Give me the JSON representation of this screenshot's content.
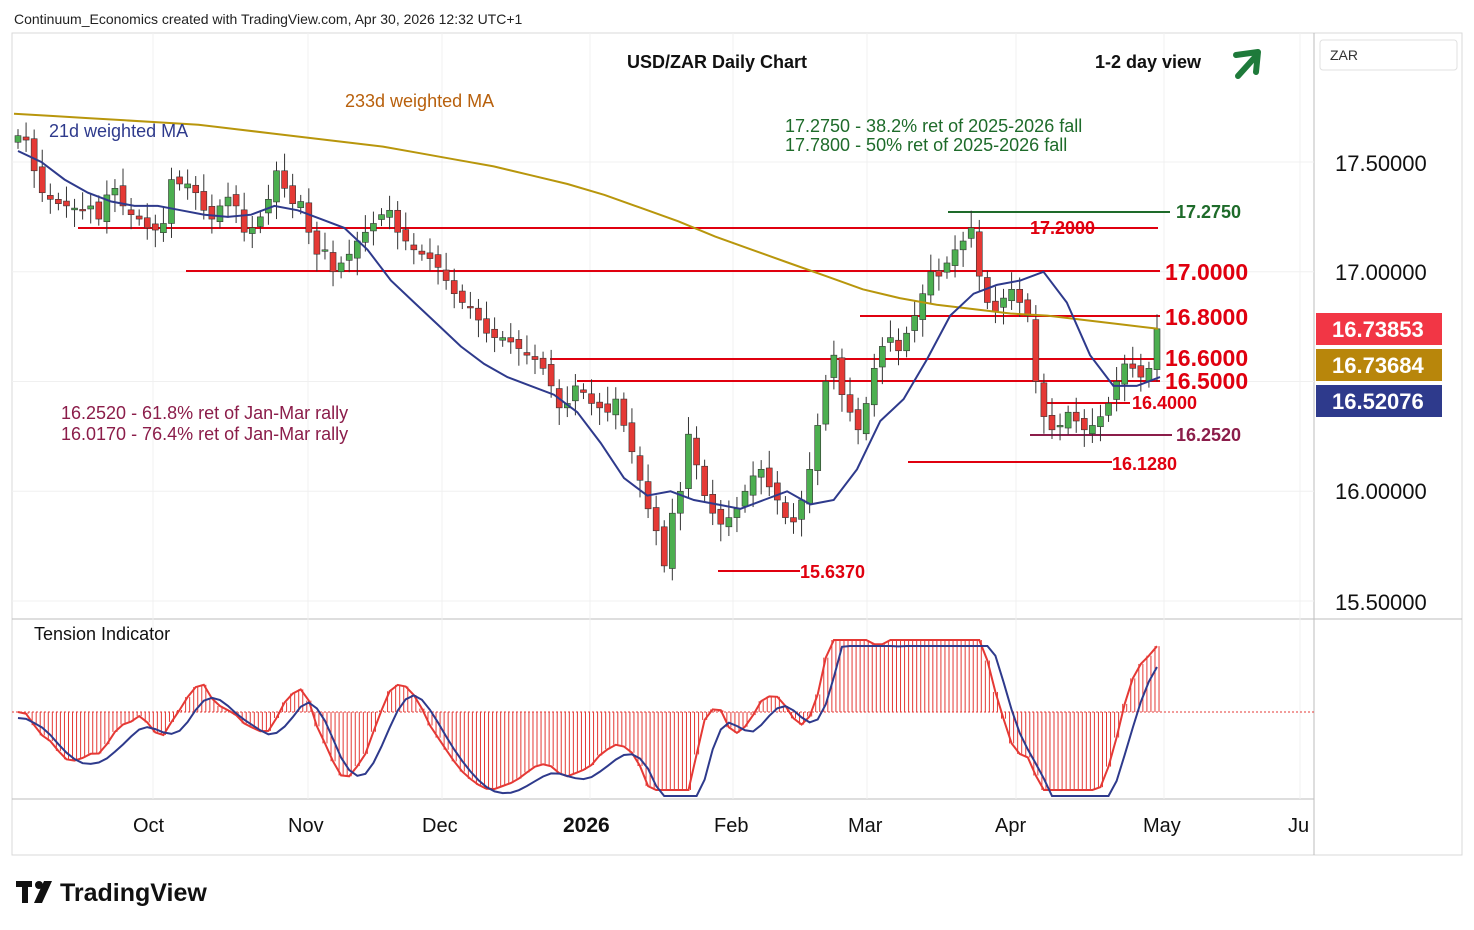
{
  "header": {
    "credit": "Continuum_Economics created with TradingView.com, Apr 30, 2026 12:32 UTC+1",
    "title": "USD/ZAR Daily Chart",
    "view": "1-2 day view",
    "view_arrow": "arrow-up-right-icon"
  },
  "currency_label": "ZAR",
  "annotations": {
    "ma233": "233d weighted MA",
    "ma21": "21d weighted MA",
    "fib_up_1": "17.2750 - 38.2% ret of 2025-2026 fall",
    "fib_up_2": "17.7800 - 50% ret of 2025-2026 fall",
    "fib_dn_1": "16.2520 - 61.8% ret of Jan-Mar rally",
    "fib_dn_2": "16.0170 - 76.4% ret of Jan-Mar rally"
  },
  "price_badges": [
    {
      "text": "16.73853",
      "color": "#f23645"
    },
    {
      "text": "16.73684",
      "color": "#b8860b"
    },
    {
      "text": "16.52076",
      "color": "#2e3a8c"
    }
  ],
  "indicator": {
    "title": "Tension Indicator"
  },
  "branding": {
    "logo_text": "TradingView",
    "logo_icon": "tradingview-logo-icon"
  },
  "colors": {
    "up": "#4caf50",
    "down": "#e53935",
    "ma233": "#b8960c",
    "ma21": "#2e3a8c",
    "level": "#e0000f",
    "fib_green": "#1e6b2a",
    "fib_dn": "#8b1d4a",
    "arrow": "#1e7a3a"
  },
  "chart_data": {
    "type": "candlestick",
    "title": "USD/ZAR Daily Chart",
    "ylim": [
      15.5,
      17.5
    ],
    "y_ticks": [
      "17.50000",
      "17.00000",
      "16.00000",
      "15.50000"
    ],
    "x_ticks": [
      "Oct",
      "Nov",
      "Dec",
      "2026",
      "Feb",
      "Mar",
      "Apr",
      "May",
      "Ju"
    ],
    "levels": [
      {
        "value": 17.275,
        "label": "17.2750"
      },
      {
        "value": 17.2,
        "label": "17.2000"
      },
      {
        "value": 17.0,
        "label": "17.0000"
      },
      {
        "value": 16.8,
        "label": "16.8000"
      },
      {
        "value": 16.6,
        "label": "16.6000"
      },
      {
        "value": 16.5,
        "label": "16.5000"
      },
      {
        "value": 16.4,
        "label": "16.4000"
      },
      {
        "value": 16.252,
        "label": "16.2520"
      },
      {
        "value": 16.128,
        "label": "16.1280"
      },
      {
        "value": 15.637,
        "label": "15.6370"
      }
    ],
    "close_path": [
      17.62,
      17.6,
      17.46,
      17.36,
      17.33,
      17.31,
      17.3,
      17.29,
      17.28,
      17.3,
      17.24,
      17.35,
      17.38,
      17.3,
      17.26,
      17.24,
      17.2,
      17.19,
      17.22,
      17.42,
      17.4,
      17.4,
      17.36,
      17.28,
      17.24,
      17.3,
      17.34,
      17.3,
      17.18,
      17.2,
      17.25,
      17.33,
      17.46,
      17.38,
      17.31,
      17.32,
      17.18,
      17.08,
      17.1,
      17.0,
      17.04,
      17.08,
      17.14,
      17.18,
      17.22,
      17.26,
      17.28,
      17.18,
      17.14,
      17.1,
      17.08,
      17.06,
      17.02,
      16.96,
      16.9,
      16.86,
      16.84,
      16.78,
      16.72,
      16.7,
      16.7,
      16.68,
      16.65,
      16.62,
      16.6,
      16.56,
      16.48,
      16.38,
      16.4,
      16.48,
      16.45,
      16.4,
      16.38,
      16.36,
      16.42,
      16.3,
      16.18,
      16.05,
      15.92,
      15.82,
      15.66,
      15.9,
      16.0,
      16.26,
      16.12,
      15.98,
      15.9,
      15.85,
      15.88,
      15.92,
      16.0,
      16.07,
      16.1,
      16.02,
      15.96,
      15.88,
      15.86,
      15.96,
      16.1,
      16.3,
      16.5,
      16.62,
      16.44,
      16.36,
      16.28,
      16.4,
      16.56,
      16.66,
      16.7,
      16.64,
      16.72,
      16.8,
      16.9,
      17.0,
      16.98,
      17.04,
      17.1,
      17.14,
      17.2,
      16.98,
      16.86,
      16.82,
      16.88,
      16.92,
      16.86,
      16.8,
      16.5,
      16.34,
      16.28,
      16.3,
      16.36,
      16.32,
      16.28,
      16.3,
      16.34,
      16.4,
      16.5,
      16.58,
      16.56,
      16.52,
      16.56,
      16.74
    ],
    "ma233_path": [
      17.72,
      17.71,
      17.7,
      17.69,
      17.68,
      17.67,
      17.65,
      17.63,
      17.61,
      17.59,
      17.57,
      17.54,
      17.51,
      17.48,
      17.44,
      17.4,
      17.35,
      17.29,
      17.23,
      17.16,
      17.1,
      17.04,
      16.98,
      16.92,
      16.88,
      16.85,
      16.83,
      16.81,
      16.8,
      16.78,
      16.76,
      16.74
    ],
    "ma21_path": [
      17.55,
      17.5,
      17.42,
      17.36,
      17.32,
      17.3,
      17.3,
      17.28,
      17.26,
      17.25,
      17.26,
      17.3,
      17.28,
      17.24,
      17.2,
      17.1,
      16.96,
      16.86,
      16.76,
      16.66,
      16.58,
      16.52,
      16.48,
      16.44,
      16.36,
      16.22,
      16.06,
      15.98,
      16.0,
      15.96,
      15.94,
      15.92,
      15.96,
      16.0,
      15.94,
      15.96,
      16.1,
      16.32,
      16.42,
      16.6,
      16.8,
      16.9,
      16.94,
      16.96,
      17.0,
      16.86,
      16.62,
      16.48,
      16.48,
      16.52
    ]
  }
}
